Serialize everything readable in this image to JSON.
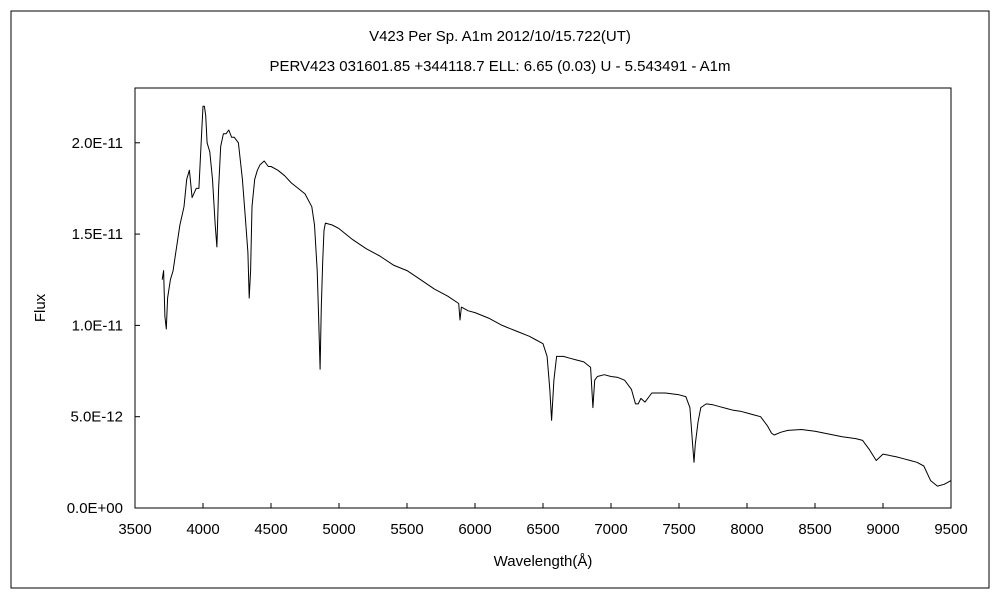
{
  "chart_data": {
    "type": "line",
    "title": "V423 Per    Sp. A1m    2012/10/15.722(UT)",
    "subtitle": "PERV423 031601.85 +344118.7 ELL: 6.65 (0.03) U - 5.543491 - A1m",
    "xlabel": "Wavelength(Å)",
    "ylabel": "Flux",
    "xlim": [
      3500,
      9500
    ],
    "ylim": [
      0,
      2.3e-11
    ],
    "grid": false,
    "x_ticks": [
      3500,
      4000,
      4500,
      5000,
      5500,
      6000,
      6500,
      7000,
      7500,
      8000,
      8500,
      9000,
      9500
    ],
    "x_tick_labels": [
      "3500",
      "4000",
      "4500",
      "5000",
      "5500",
      "6000",
      "6500",
      "7000",
      "7500",
      "8000",
      "8500",
      "9000",
      "9500"
    ],
    "y_ticks": [
      0,
      5e-12,
      1e-11,
      1.5e-11,
      2e-11
    ],
    "y_tick_labels": [
      "0.0E+00",
      "5.0E-12",
      "1.0E-11",
      "1.5E-11",
      "2.0E-11"
    ],
    "color": "#000000",
    "series": [
      {
        "x": [
          3700,
          3710,
          3720,
          3730,
          3740,
          3760,
          3780,
          3800,
          3830,
          3860,
          3880,
          3900,
          3920,
          3950,
          3970,
          3990,
          4000,
          4010,
          4020,
          4030,
          4050,
          4070,
          4090,
          4102,
          4115,
          4130,
          4150,
          4170,
          4190,
          4210,
          4230,
          4260,
          4290,
          4310,
          4330,
          4340,
          4350,
          4360,
          4380,
          4400,
          4420,
          4450,
          4480,
          4500,
          4550,
          4600,
          4650,
          4700,
          4750,
          4800,
          4820,
          4840,
          4850,
          4861,
          4870,
          4880,
          4890,
          4900,
          4950,
          5000,
          5050,
          5100,
          5200,
          5300,
          5400,
          5500,
          5600,
          5700,
          5800,
          5880,
          5890,
          5900,
          5950,
          6000,
          6100,
          6200,
          6300,
          6400,
          6450,
          6500,
          6530,
          6550,
          6563,
          6580,
          6600,
          6650,
          6700,
          6750,
          6800,
          6850,
          6867,
          6880,
          6900,
          6950,
          7000,
          7050,
          7100,
          7150,
          7180,
          7200,
          7220,
          7250,
          7300,
          7350,
          7400,
          7450,
          7500,
          7550,
          7580,
          7600,
          7610,
          7620,
          7640,
          7660,
          7700,
          7750,
          7800,
          7850,
          7900,
          7950,
          8000,
          8050,
          8100,
          8150,
          8180,
          8200,
          8250,
          8300,
          8400,
          8500,
          8600,
          8700,
          8800,
          8850,
          8900,
          8950,
          9000,
          9100,
          9150,
          9200,
          9250,
          9300,
          9350,
          9400,
          9450,
          9500
        ],
        "y": [
          1.25e-11,
          1.3e-11,
          1.05e-11,
          9.8e-12,
          1.15e-11,
          1.25e-11,
          1.3e-11,
          1.4e-11,
          1.55e-11,
          1.65e-11,
          1.8e-11,
          1.85e-11,
          1.7e-11,
          1.75e-11,
          1.75e-11,
          2.05e-11,
          2.2e-11,
          2.2e-11,
          2.15e-11,
          2e-11,
          1.95e-11,
          1.8e-11,
          1.55e-11,
          1.43e-11,
          1.75e-11,
          1.98e-11,
          2.05e-11,
          2.05e-11,
          2.07e-11,
          2.03e-11,
          2.03e-11,
          2e-11,
          1.8e-11,
          1.6e-11,
          1.4e-11,
          1.15e-11,
          1.3e-11,
          1.65e-11,
          1.8e-11,
          1.85e-11,
          1.88e-11,
          1.9e-11,
          1.87e-11,
          1.87e-11,
          1.85e-11,
          1.82e-11,
          1.78e-11,
          1.75e-11,
          1.72e-11,
          1.65e-11,
          1.55e-11,
          1.3e-11,
          1.05e-11,
          7.6e-12,
          1.1e-11,
          1.35e-11,
          1.52e-11,
          1.56e-11,
          1.55e-11,
          1.53e-11,
          1.5e-11,
          1.47e-11,
          1.42e-11,
          1.38e-11,
          1.33e-11,
          1.3e-11,
          1.25e-11,
          1.2e-11,
          1.16e-11,
          1.12e-11,
          1.03e-11,
          1.1e-11,
          1.08e-11,
          1.07e-11,
          1.04e-11,
          1e-11,
          9.7e-12,
          9.4e-12,
          9.2e-12,
          9e-12,
          8.3e-12,
          6.5e-12,
          4.8e-12,
          7e-12,
          8.3e-12,
          8.3e-12,
          8.2e-12,
          8.1e-12,
          8e-12,
          7.7e-12,
          5.5e-12,
          7e-12,
          7.2e-12,
          7.3e-12,
          7.2e-12,
          7.15e-12,
          7e-12,
          6.5e-12,
          5.7e-12,
          5.7e-12,
          6e-12,
          5.8e-12,
          6.3e-12,
          6.3e-12,
          6.3e-12,
          6.25e-12,
          6.2e-12,
          6.1e-12,
          5.5e-12,
          3.5e-12,
          2.5e-12,
          3.5e-12,
          4.7e-12,
          5.5e-12,
          5.7e-12,
          5.65e-12,
          5.55e-12,
          5.45e-12,
          5.35e-12,
          5.3e-12,
          5.2e-12,
          5.1e-12,
          5e-12,
          4.5e-12,
          4.1e-12,
          4e-12,
          4.15e-12,
          4.25e-12,
          4.3e-12,
          4.2e-12,
          4.05e-12,
          3.9e-12,
          3.8e-12,
          3.7e-12,
          3.2e-12,
          2.6e-12,
          2.95e-12,
          2.8e-12,
          2.7e-12,
          2.6e-12,
          2.5e-12,
          2.3e-12,
          1.5e-12,
          1.2e-12,
          1.3e-12,
          1.5e-12
        ]
      }
    ]
  }
}
